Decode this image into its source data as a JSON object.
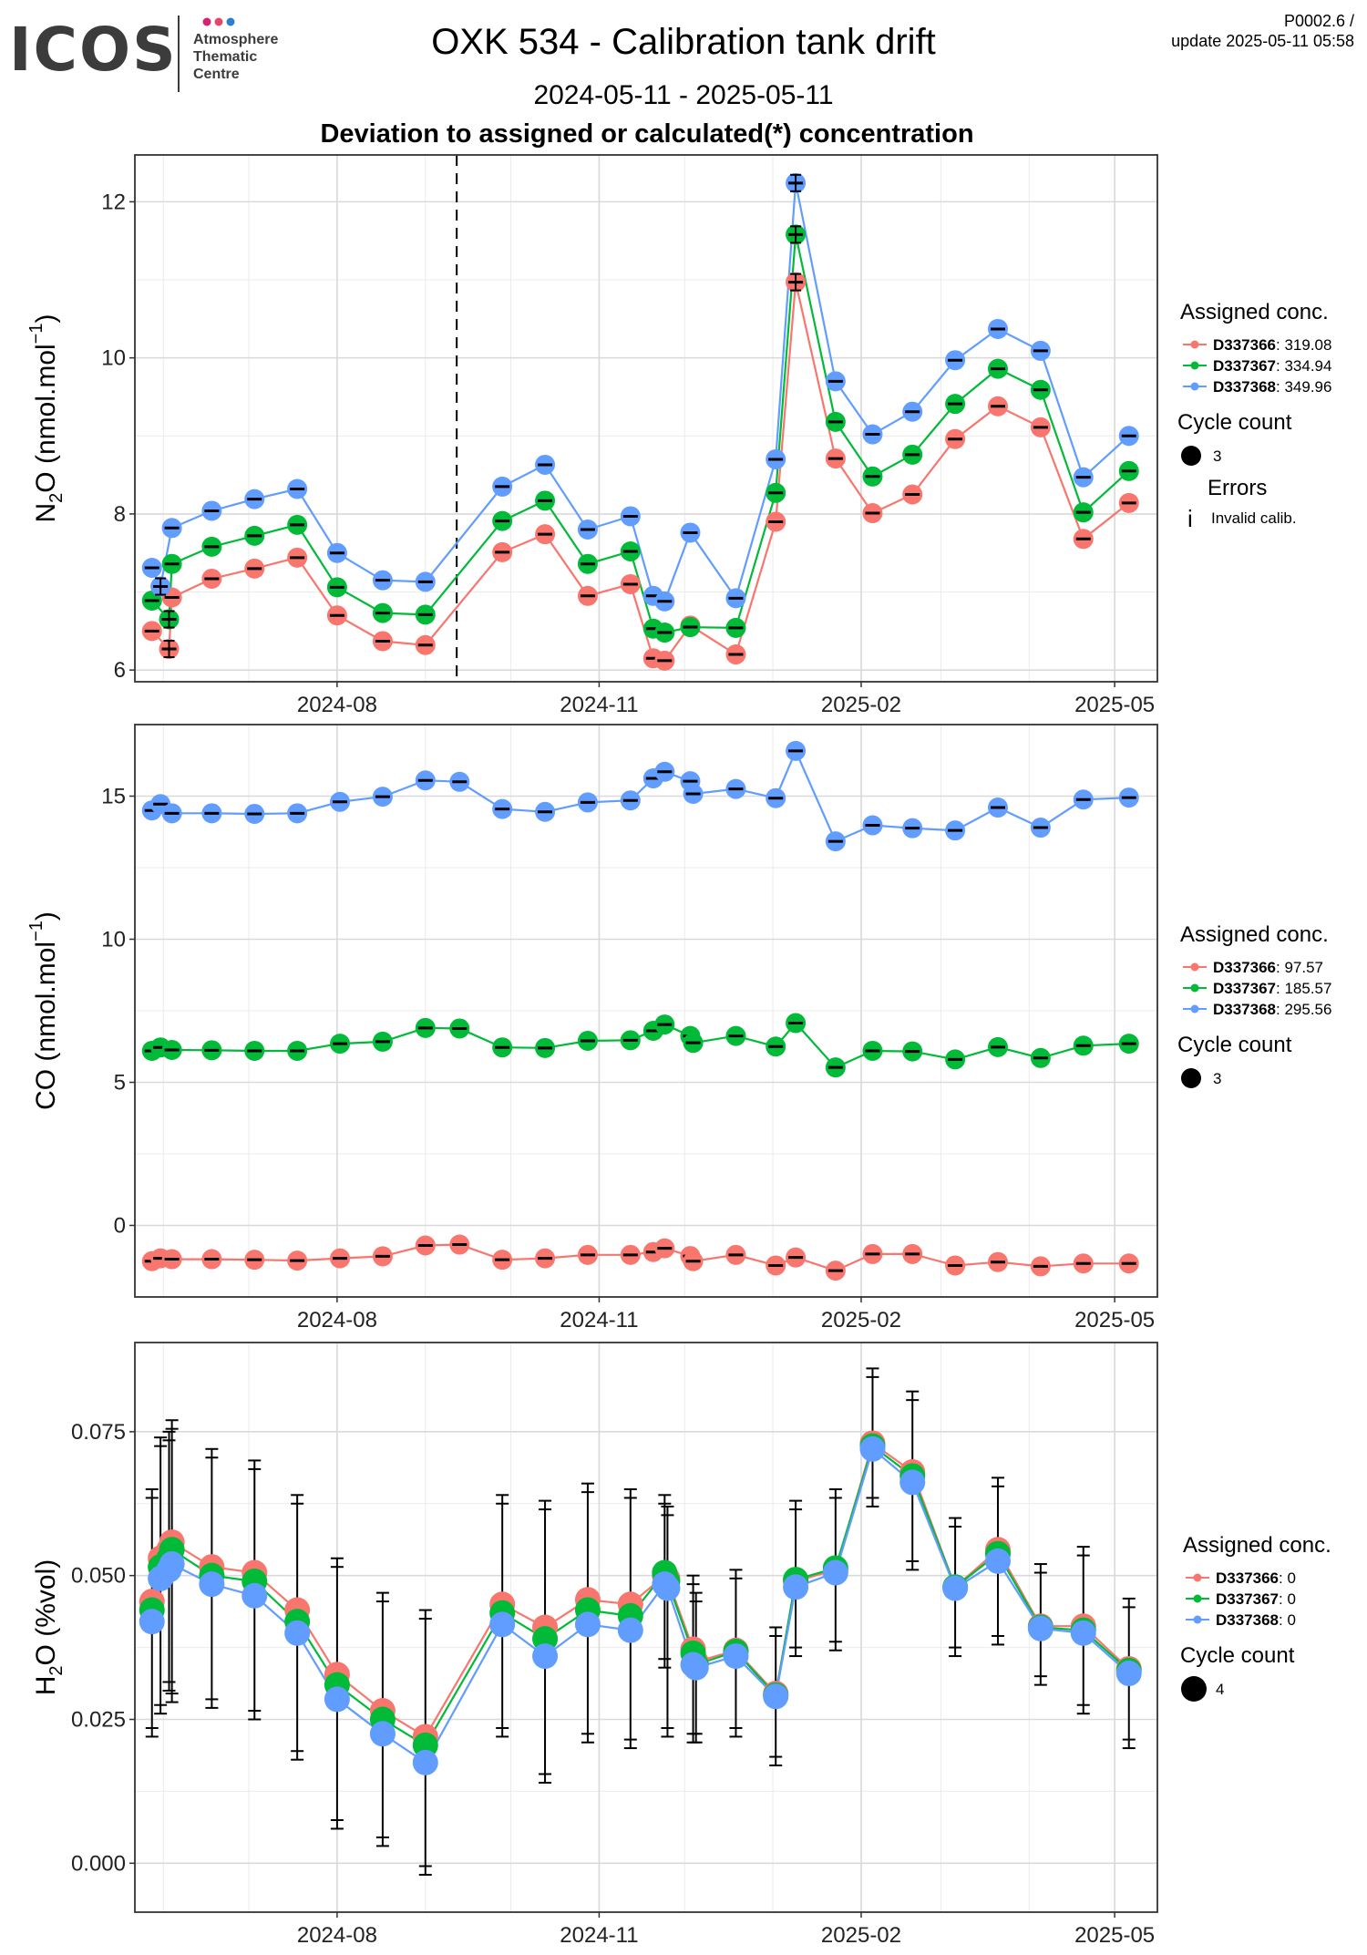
{
  "header": {
    "logo_text": "ICOS",
    "logo_sub": [
      "Atmosphere",
      "Thematic",
      "Centre"
    ],
    "logo_dot_colors": [
      "#d7226f",
      "#e0486c",
      "#2c7fd0"
    ],
    "title": "OXK 534 - Calibration tank drift",
    "date_range": "2024-05-11 - 2025-05-11",
    "version": "P0002.6 /",
    "update": "update  2025-05-11 05:58"
  },
  "panel_title": "Deviation to assigned or calculated(*) concentration",
  "colors": {
    "D337366": "#f8766d",
    "D337367": "#00ba38",
    "D337368": "#619cff"
  },
  "x_ticks": [
    "2024-08",
    "2024-11",
    "2025-02",
    "2025-05"
  ],
  "chart_data": [
    {
      "type": "line",
      "name": "n2o",
      "ylabel_parts": [
        "N",
        "2",
        "O (nmol.mol",
        "−1",
        ")"
      ],
      "ylim": [
        5.85,
        12.6
      ],
      "y_ticks": [
        6,
        8,
        10,
        12
      ],
      "y_tick_labels": [
        "6",
        "8",
        "10",
        "12"
      ],
      "vline_date": "2024-09-12",
      "x": [
        "2024-05-28",
        "2024-05-31",
        "2024-06-03",
        "2024-06-04",
        "2024-06-18",
        "2024-07-03",
        "2024-07-18",
        "2024-08-01",
        "2024-08-17",
        "2024-09-01",
        "2024-09-28",
        "2024-10-13",
        "2024-10-28",
        "2024-11-12",
        "2024-11-20",
        "2024-11-24",
        "2024-12-03",
        "2024-12-19",
        "2025-01-02",
        "2025-01-09",
        "2025-01-23",
        "2025-02-05",
        "2025-02-19",
        "2025-03-06",
        "2025-03-21",
        "2025-04-05",
        "2025-04-20",
        "2025-05-06"
      ],
      "invalid_x": [
        "2024-05-31",
        "2024-06-03",
        "2025-01-09"
      ],
      "series": [
        {
          "key": "D337366",
          "legend": "D337366",
          "legend_value": "319.08",
          "values": [
            6.5,
            null,
            6.27,
            6.93,
            7.17,
            7.3,
            7.44,
            6.7,
            6.37,
            6.32,
            7.51,
            7.74,
            6.95,
            7.1,
            6.15,
            6.12,
            6.57,
            6.2,
            7.9,
            10.97,
            8.71,
            8.01,
            8.25,
            8.96,
            9.38,
            9.11,
            7.68,
            8.14
          ]
        },
        {
          "key": "D337367",
          "legend": "D337367",
          "legend_value": "334.94",
          "values": [
            6.89,
            null,
            6.65,
            7.36,
            7.58,
            7.72,
            7.86,
            7.06,
            6.73,
            6.71,
            7.91,
            8.17,
            7.36,
            7.52,
            6.53,
            6.48,
            6.55,
            6.54,
            8.27,
            11.58,
            9.18,
            8.48,
            8.76,
            9.41,
            9.86,
            9.59,
            8.02,
            8.55
          ]
        },
        {
          "key": "D337368",
          "legend": "D337368",
          "legend_value": "349.96",
          "values": [
            7.31,
            7.07,
            null,
            7.82,
            8.04,
            8.19,
            8.32,
            7.5,
            7.15,
            7.13,
            8.35,
            8.63,
            7.8,
            7.97,
            6.95,
            6.88,
            7.76,
            6.92,
            8.7,
            12.24,
            9.7,
            9.02,
            9.31,
            9.97,
            10.37,
            10.09,
            8.47,
            9.0
          ]
        }
      ],
      "legend": {
        "title": "Assigned conc.",
        "cycle_title": "Cycle count",
        "cycle_value": "3",
        "errors_title": "Errors",
        "errors_symbol": "i",
        "errors_label": "Invalid calib."
      }
    },
    {
      "type": "line",
      "name": "co",
      "ylabel_parts": [
        "CO (nmol.mol",
        "−1",
        ")"
      ],
      "ylim": [
        -2.5,
        17.5
      ],
      "y_ticks": [
        0,
        5,
        10,
        15
      ],
      "y_tick_labels": [
        "0",
        "5",
        "10",
        "15"
      ],
      "x": [
        "2024-05-28",
        "2024-05-31",
        "2024-06-04",
        "2024-06-18",
        "2024-07-03",
        "2024-07-18",
        "2024-08-02",
        "2024-08-17",
        "2024-09-01",
        "2024-09-13",
        "2024-09-28",
        "2024-10-13",
        "2024-10-28",
        "2024-11-12",
        "2024-11-20",
        "2024-11-24",
        "2024-12-03",
        "2024-12-04",
        "2024-12-19",
        "2025-01-02",
        "2025-01-09",
        "2025-01-23",
        "2025-02-05",
        "2025-02-19",
        "2025-03-06",
        "2025-03-21",
        "2025-04-05",
        "2025-04-20",
        "2025-05-06"
      ],
      "series": [
        {
          "key": "D337366",
          "legend": "D337366",
          "legend_value": "97.57",
          "values": [
            -1.25,
            -1.15,
            -1.18,
            -1.18,
            -1.2,
            -1.23,
            -1.15,
            -1.08,
            -0.7,
            -0.67,
            -1.2,
            -1.15,
            -1.03,
            -1.03,
            -0.93,
            -0.8,
            -1.07,
            -1.25,
            -1.03,
            -1.4,
            -1.12,
            -1.58,
            -1.0,
            -1.0,
            -1.4,
            -1.28,
            -1.43,
            -1.33,
            -1.33
          ]
        },
        {
          "key": "D337367",
          "legend": "D337367",
          "legend_value": "185.57",
          "values": [
            6.1,
            6.22,
            6.13,
            6.12,
            6.1,
            6.1,
            6.35,
            6.42,
            6.9,
            6.88,
            6.22,
            6.2,
            6.45,
            6.47,
            6.8,
            7.02,
            6.62,
            6.38,
            6.62,
            6.25,
            7.07,
            5.52,
            6.1,
            6.08,
            5.8,
            6.23,
            5.85,
            6.28,
            6.35
          ]
        },
        {
          "key": "D337368",
          "legend": "D337368",
          "legend_value": "295.56",
          "values": [
            14.5,
            14.72,
            14.4,
            14.4,
            14.38,
            14.4,
            14.8,
            14.98,
            15.55,
            15.5,
            14.55,
            14.45,
            14.78,
            14.85,
            15.62,
            15.85,
            15.52,
            15.08,
            15.25,
            14.93,
            16.58,
            13.42,
            13.98,
            13.88,
            13.8,
            14.6,
            13.9,
            14.88,
            14.95
          ]
        }
      ],
      "legend": {
        "title": "Assigned conc.",
        "cycle_title": "Cycle count",
        "cycle_value": "3"
      }
    },
    {
      "type": "line",
      "name": "h2o",
      "ylabel_parts": [
        "H",
        "2",
        "O (%vol)"
      ],
      "ylim": [
        -0.0085,
        0.0905
      ],
      "y_ticks": [
        0,
        0.025,
        0.05,
        0.075
      ],
      "y_tick_labels": [
        "0.000",
        "0.025",
        "0.050",
        "0.075"
      ],
      "x": [
        "2024-05-28",
        "2024-05-31",
        "2024-06-03",
        "2024-06-04",
        "2024-06-18",
        "2024-07-03",
        "2024-07-18",
        "2024-08-01",
        "2024-08-17",
        "2024-09-01",
        "2024-09-28",
        "2024-10-13",
        "2024-10-28",
        "2024-11-12",
        "2024-11-24",
        "2024-11-25",
        "2024-12-04",
        "2024-12-05",
        "2024-12-19",
        "2025-01-02",
        "2025-01-09",
        "2025-01-23",
        "2025-02-05",
        "2025-02-19",
        "2025-03-06",
        "2025-03-21",
        "2025-04-05",
        "2025-04-20",
        "2025-05-06"
      ],
      "series": [
        {
          "key": "D337366",
          "legend": "D337366",
          "legend_value": "0",
          "values": [
            0.0455,
            0.053,
            0.0545,
            0.0558,
            0.0515,
            0.0505,
            0.044,
            0.0328,
            0.0265,
            0.022,
            0.045,
            0.041,
            0.0458,
            0.045,
            0.05,
            0.0495,
            0.0372,
            0.035,
            0.037,
            0.0295,
            0.049,
            0.051,
            0.073,
            0.068,
            0.048,
            0.0545,
            0.0412,
            0.0412,
            0.0338
          ]
        },
        {
          "key": "D337367",
          "legend": "D337367",
          "legend_value": "0",
          "values": [
            0.044,
            0.0515,
            0.053,
            0.0545,
            0.05,
            0.049,
            0.042,
            0.031,
            0.025,
            0.0205,
            0.0435,
            0.039,
            0.044,
            0.043,
            0.0505,
            0.049,
            0.0365,
            0.0345,
            0.0368,
            0.0292,
            0.0493,
            0.0513,
            0.0725,
            0.0673,
            0.048,
            0.0538,
            0.041,
            0.0405,
            0.0335
          ]
        },
        {
          "key": "D337368",
          "legend": "D337368",
          "legend_value": "0",
          "values": [
            0.042,
            0.0495,
            0.051,
            0.052,
            0.0485,
            0.0465,
            0.04,
            0.0285,
            0.0225,
            0.0175,
            0.0415,
            0.036,
            0.0415,
            0.0405,
            0.0485,
            0.0478,
            0.0345,
            0.034,
            0.036,
            0.029,
            0.048,
            0.0505,
            0.072,
            0.0662,
            0.0478,
            0.0525,
            0.0408,
            0.04,
            0.033
          ]
        }
      ],
      "error_bars": {
        "low": [
          0.022,
          0.026,
          0.03,
          0.028,
          0.027,
          0.025,
          0.018,
          0.006,
          0.003,
          -0.002,
          0.022,
          0.014,
          0.021,
          0.02,
          0.034,
          0.022,
          0.021,
          0.021,
          0.022,
          0.017,
          0.036,
          0.037,
          0.062,
          0.051,
          0.036,
          0.038,
          0.031,
          0.026,
          0.02
        ],
        "high": [
          0.065,
          0.074,
          0.075,
          0.077,
          0.072,
          0.07,
          0.064,
          0.053,
          0.047,
          0.044,
          0.064,
          0.063,
          0.066,
          0.065,
          0.064,
          0.062,
          0.05,
          0.047,
          0.051,
          0.041,
          0.063,
          0.065,
          0.086,
          0.082,
          0.06,
          0.067,
          0.052,
          0.055,
          0.046
        ]
      },
      "legend": {
        "title": "Assigned conc.",
        "cycle_title": "Cycle count",
        "cycle_value": "4"
      }
    }
  ]
}
